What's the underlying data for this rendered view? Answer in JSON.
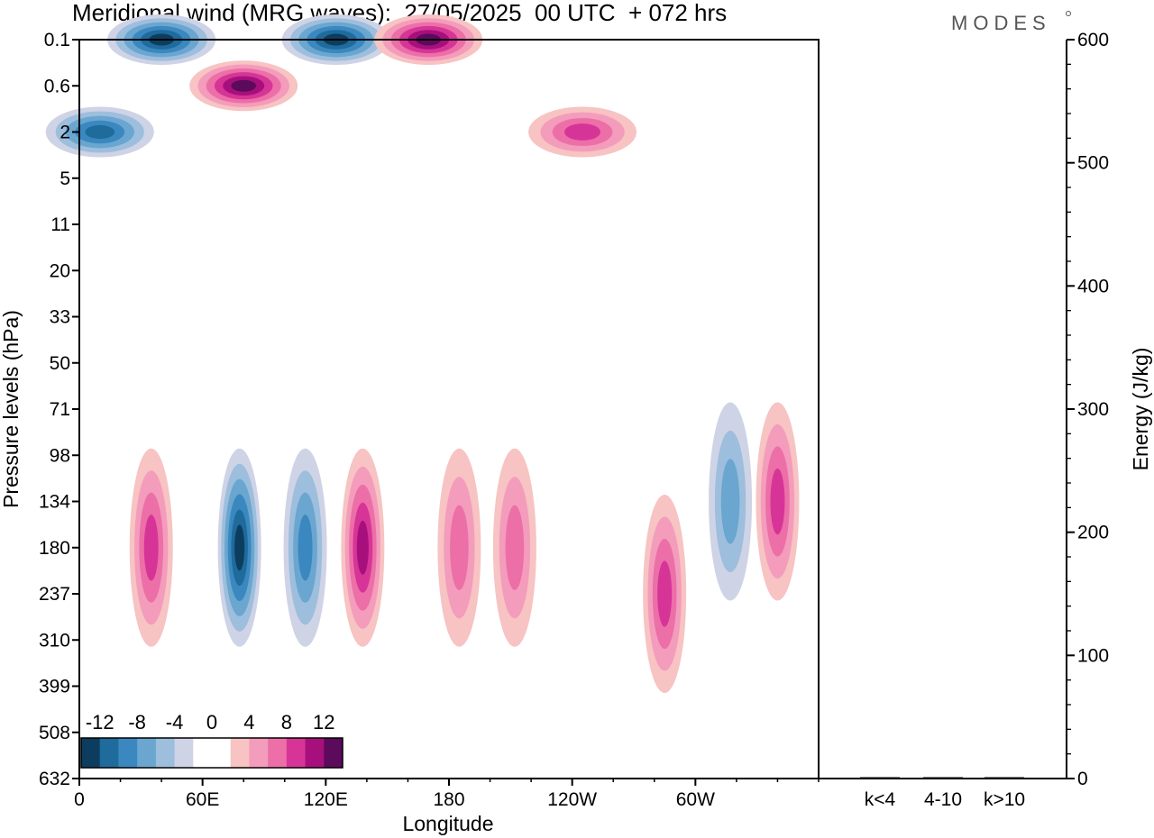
{
  "chart_data": [
    {
      "type": "heatmap",
      "title": "Meridional wind (MRG waves):  27/05/2025  00 UTC  + 072 hrs",
      "xlabel": "Longitude",
      "ylabel": "Pressure levels (hPa)",
      "x_ticks": [
        "0",
        "60E",
        "120E",
        "180",
        "120W",
        "60W"
      ],
      "x_tick_values": [
        0,
        60,
        120,
        180,
        240,
        300
      ],
      "xlim": [
        0,
        360
      ],
      "y_ticks": [
        "0.1",
        "0.6",
        "2",
        "5",
        "11",
        "20",
        "33",
        "50",
        "71",
        "98",
        "134",
        "180",
        "237",
        "310",
        "399",
        "508",
        "632"
      ],
      "colorbar": {
        "labels": [
          "-12",
          "-8",
          "-4",
          "0",
          "4",
          "8",
          "12"
        ],
        "levels": [
          -14,
          -12,
          -10,
          -8,
          -6,
          -4,
          -2,
          2,
          4,
          6,
          8,
          10,
          12,
          14
        ],
        "colors": [
          "#0d3d5e",
          "#1e6b9c",
          "#3a88bf",
          "#6aa6cf",
          "#9dbedd",
          "#cfd3e6",
          "#ffffff",
          "#ffffff",
          "#f7c3c3",
          "#f49cbb",
          "#ec6fa8",
          "#d63597",
          "#a7107c",
          "#5c0a5c"
        ]
      },
      "features": [
        {
          "lon": 35,
          "level": "180",
          "value": 10,
          "note": "positive cell"
        },
        {
          "lon": 78,
          "level": "180",
          "value": -13,
          "note": "negative cell"
        },
        {
          "lon": 110,
          "level": "180",
          "value": -9,
          "note": "negative cell"
        },
        {
          "lon": 138,
          "level": "180",
          "value": 11,
          "note": "positive cell"
        },
        {
          "lon": 185,
          "level": "180",
          "value": 8,
          "note": "positive cell"
        },
        {
          "lon": 212,
          "level": "180",
          "value": 8,
          "note": "positive cell"
        },
        {
          "lon": 285,
          "level": "237",
          "value": 9,
          "note": "positive cell"
        },
        {
          "lon": 317,
          "level": "134",
          "value": -7,
          "note": "negative cell"
        },
        {
          "lon": 340,
          "level": "134",
          "value": 10,
          "note": "positive cell"
        },
        {
          "lon": 40,
          "level": "0.1",
          "value": -14,
          "note": "upper-level negative"
        },
        {
          "lon": 80,
          "level": "0.6",
          "value": 14,
          "note": "upper-level positive"
        },
        {
          "lon": 125,
          "level": "0.1",
          "value": -13,
          "note": "upper-level negative"
        },
        {
          "lon": 170,
          "level": "0.1",
          "value": 14,
          "note": "upper-level positive"
        },
        {
          "lon": 10,
          "level": "2",
          "value": -12,
          "note": "upper-level negative"
        },
        {
          "lon": 245,
          "level": "2",
          "value": 10,
          "note": "upper-level positive"
        }
      ]
    },
    {
      "type": "bar",
      "ylabel": "Energy (J/kg)",
      "ylim": [
        0,
        600
      ],
      "y_ticks": [
        "0",
        "100",
        "200",
        "300",
        "400",
        "500",
        "600"
      ],
      "categories": [
        "k<4",
        "4-10",
        "k>10"
      ],
      "values": [
        0.5,
        1,
        0
      ]
    }
  ],
  "branding": {
    "logo_text": "MODES"
  }
}
